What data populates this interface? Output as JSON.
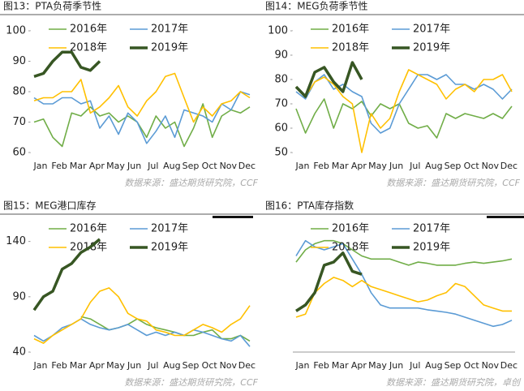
{
  "chart_data": [
    {
      "type": "line",
      "title": "图13：PTA负荷季节性",
      "source": "数据来源：盛达期货研究院，CCF",
      "categories": [
        "Jan",
        null,
        "Feb",
        null,
        "Mar",
        null,
        "Apr",
        null,
        "May",
        null,
        "Jun",
        null,
        "Jul",
        null,
        "Aug",
        null,
        "Sep",
        null,
        "Oct",
        null,
        "Nov",
        null,
        "Dec",
        null
      ],
      "ylim": [
        60,
        100
      ],
      "yticks": [
        60,
        70,
        80,
        90,
        100
      ],
      "series": [
        {
          "name": "2016年",
          "color": "#70ad47",
          "values": [
            70,
            71,
            65,
            62,
            73,
            72,
            75,
            72,
            73,
            70,
            72,
            70,
            65,
            72,
            68,
            70,
            62,
            68,
            76,
            65,
            72,
            74,
            73,
            75
          ]
        },
        {
          "name": "2017年",
          "color": "#5b9bd5",
          "values": [
            78,
            76,
            76,
            78,
            78,
            76,
            77,
            68,
            72,
            66,
            73,
            70,
            63,
            67,
            72,
            65,
            74,
            73,
            72,
            70,
            76,
            74,
            80,
            79
          ]
        },
        {
          "name": "2018年",
          "color": "#ffc000",
          "values": [
            77,
            78,
            78,
            80,
            80,
            84,
            73,
            75,
            78,
            82,
            75,
            72,
            77,
            80,
            85,
            86,
            78,
            70,
            75,
            72,
            76,
            77,
            80,
            78
          ]
        },
        {
          "name": "2019年",
          "color": "#375623",
          "values": [
            85,
            86,
            90,
            93,
            93,
            88,
            87,
            90,
            null,
            null,
            null,
            null,
            null,
            null,
            null,
            null,
            null,
            null,
            null,
            null,
            null,
            null,
            null,
            null
          ]
        }
      ]
    },
    {
      "type": "line",
      "title": "图14：MEG负荷季节性",
      "source": "数据来源：盛达期货研究院，CCF",
      "categories": [
        "Jan",
        null,
        "Feb",
        null,
        "Mar",
        null,
        "Apr",
        null,
        "May",
        null,
        "Jun",
        null,
        "Jul",
        null,
        "Aug",
        null,
        "Sep",
        null,
        "Oct",
        null,
        "Nov",
        null,
        "Dec",
        null
      ],
      "ylim": [
        50,
        100
      ],
      "yticks": [
        50,
        60,
        70,
        80,
        90,
        100
      ],
      "series": [
        {
          "name": "2016年",
          "color": "#70ad47",
          "values": [
            68,
            58,
            66,
            72,
            60,
            70,
            68,
            71,
            65,
            70,
            68,
            70,
            62,
            60,
            61,
            56,
            66,
            64,
            66,
            65,
            64,
            66,
            64,
            69
          ]
        },
        {
          "name": "2017年",
          "color": "#5b9bd5",
          "values": [
            75,
            72,
            79,
            82,
            76,
            78,
            75,
            73,
            62,
            58,
            60,
            70,
            76,
            82,
            82,
            80,
            82,
            78,
            78,
            76,
            78,
            76,
            72,
            76
          ]
        },
        {
          "name": "2018年",
          "color": "#ffc000",
          "values": [
            77,
            73,
            79,
            81,
            78,
            73,
            70,
            50,
            66,
            60,
            64,
            75,
            84,
            82,
            80,
            78,
            72,
            76,
            78,
            75,
            80,
            80,
            82,
            75
          ]
        },
        {
          "name": "2019年",
          "color": "#375623",
          "values": [
            77,
            73,
            83,
            85,
            79,
            75,
            87,
            80,
            null,
            null,
            null,
            null,
            null,
            null,
            null,
            null,
            null,
            null,
            null,
            null,
            null,
            null,
            null,
            null
          ]
        }
      ]
    },
    {
      "type": "line",
      "title": "图15：MEG港口库存",
      "source": "数据来源：盛达期货研究院，CCF",
      "categories": [
        "Jan",
        null,
        "Feb",
        null,
        "Mar",
        null,
        "Apr",
        null,
        "May",
        null,
        "Jun",
        null,
        "Jul",
        null,
        "Aug",
        null,
        "Sep",
        null,
        "Oct",
        null,
        "Nov",
        null,
        "Dec",
        null
      ],
      "ylim": [
        40,
        150
      ],
      "yticks": [
        40,
        90,
        140
      ],
      "series": [
        {
          "name": "2016年",
          "color": "#70ad47",
          "values": [
            null,
            null,
            null,
            null,
            null,
            72,
            70,
            65,
            60,
            62,
            65,
            70,
            65,
            62,
            60,
            58,
            55,
            55,
            58,
            60,
            52,
            52,
            55,
            50
          ]
        },
        {
          "name": "2017年",
          "color": "#5b9bd5",
          "values": [
            55,
            50,
            55,
            62,
            65,
            70,
            65,
            62,
            60,
            62,
            65,
            60,
            55,
            58,
            55,
            58,
            55,
            60,
            58,
            55,
            52,
            50,
            55,
            45
          ]
        },
        {
          "name": "2018年",
          "color": "#ffc000",
          "values": [
            52,
            48,
            55,
            60,
            65,
            70,
            85,
            95,
            98,
            90,
            75,
            70,
            68,
            60,
            58,
            55,
            55,
            60,
            65,
            62,
            58,
            65,
            70,
            82
          ]
        },
        {
          "name": "2019年",
          "color": "#375623",
          "values": [
            78,
            90,
            95,
            115,
            120,
            130,
            135,
            142,
            null,
            null,
            null,
            null,
            null,
            null,
            null,
            null,
            null,
            null,
            null,
            null,
            null,
            null,
            null,
            null
          ]
        }
      ]
    },
    {
      "type": "line",
      "title": "图16：PTA库存指数",
      "source": "数据来源：盛达期货研究院，卓创",
      "categories": [
        "Jan",
        null,
        "Feb",
        null,
        "Mar",
        null,
        "Apr",
        null,
        "May",
        null,
        "Jun",
        null,
        "Jul",
        null,
        "Aug",
        null,
        "Sep",
        null,
        "Oct",
        null,
        "Nov",
        null,
        "Dec",
        null
      ],
      "series": [
        {
          "name": "2016年",
          "color": "#70ad47",
          "values": [
            150,
            170,
            180,
            185,
            185,
            180,
            170,
            160,
            155,
            155,
            155,
            150,
            145,
            150,
            148,
            145,
            145,
            145,
            148,
            150,
            148,
            150,
            152,
            155
          ]
        },
        {
          "name": "2017年",
          "color": "#5b9bd5",
          "values": [
            160,
            185,
            175,
            170,
            175,
            180,
            155,
            130,
            100,
            80,
            75,
            75,
            75,
            75,
            72,
            70,
            68,
            65,
            60,
            55,
            50,
            45,
            48,
            55
          ]
        },
        {
          "name": "2018年",
          "color": "#ffc000",
          "values": [
            60,
            65,
            100,
            115,
            125,
            120,
            110,
            120,
            110,
            105,
            100,
            95,
            90,
            85,
            88,
            95,
            100,
            115,
            110,
            95,
            80,
            75,
            70,
            70
          ]
        },
        {
          "name": "2019年",
          "color": "#375623",
          "values": [
            70,
            80,
            100,
            145,
            150,
            165,
            135,
            130,
            null,
            null,
            null,
            null,
            null,
            null,
            null,
            null,
            null,
            null,
            null,
            null,
            null,
            null,
            null,
            null
          ]
        }
      ]
    }
  ]
}
